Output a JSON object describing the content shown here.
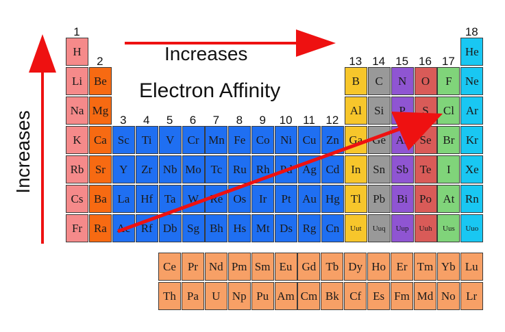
{
  "title": "Electron Affinity",
  "top_arrow_label": "Increases",
  "side_arrow_label": "Increases",
  "colors": {
    "alkali": "#f58a8a",
    "alkaline": "#f76a12",
    "transition": "#1f6ff2",
    "post_transition": "#f7c62b",
    "metalloid": "#999999",
    "nonmetal_pnictogen": "#8f55d2",
    "chalcogen": "#d95b58",
    "halogen": "#80d47a",
    "noble": "#19c7f2",
    "lanthanide": "#f7a066",
    "arrow": "#ee1111"
  },
  "group_numbers": [
    "1",
    "2",
    "3",
    "4",
    "5",
    "6",
    "7",
    "8",
    "9",
    "10",
    "11",
    "12",
    "13",
    "14",
    "15",
    "16",
    "17",
    "18"
  ],
  "elements": [
    {
      "symbol": "H",
      "row": 1,
      "col": 1,
      "cat": "alkali"
    },
    {
      "symbol": "He",
      "row": 1,
      "col": 18,
      "cat": "noble"
    },
    {
      "symbol": "Li",
      "row": 2,
      "col": 1,
      "cat": "alkali"
    },
    {
      "symbol": "Be",
      "row": 2,
      "col": 2,
      "cat": "alkaline"
    },
    {
      "symbol": "B",
      "row": 2,
      "col": 13,
      "cat": "post_transition"
    },
    {
      "symbol": "C",
      "row": 2,
      "col": 14,
      "cat": "metalloid"
    },
    {
      "symbol": "N",
      "row": 2,
      "col": 15,
      "cat": "nonmetal_pnictogen"
    },
    {
      "symbol": "O",
      "row": 2,
      "col": 16,
      "cat": "chalcogen"
    },
    {
      "symbol": "F",
      "row": 2,
      "col": 17,
      "cat": "halogen"
    },
    {
      "symbol": "Ne",
      "row": 2,
      "col": 18,
      "cat": "noble"
    },
    {
      "symbol": "Na",
      "row": 3,
      "col": 1,
      "cat": "alkali"
    },
    {
      "symbol": "Mg",
      "row": 3,
      "col": 2,
      "cat": "alkaline"
    },
    {
      "symbol": "Al",
      "row": 3,
      "col": 13,
      "cat": "post_transition"
    },
    {
      "symbol": "Si",
      "row": 3,
      "col": 14,
      "cat": "metalloid"
    },
    {
      "symbol": "P",
      "row": 3,
      "col": 15,
      "cat": "nonmetal_pnictogen"
    },
    {
      "symbol": "S",
      "row": 3,
      "col": 16,
      "cat": "chalcogen"
    },
    {
      "symbol": "Cl",
      "row": 3,
      "col": 17,
      "cat": "halogen"
    },
    {
      "symbol": "Ar",
      "row": 3,
      "col": 18,
      "cat": "noble"
    },
    {
      "symbol": "K",
      "row": 4,
      "col": 1,
      "cat": "alkali"
    },
    {
      "symbol": "Ca",
      "row": 4,
      "col": 2,
      "cat": "alkaline"
    },
    {
      "symbol": "Sc",
      "row": 4,
      "col": 3,
      "cat": "transition"
    },
    {
      "symbol": "Ti",
      "row": 4,
      "col": 4,
      "cat": "transition"
    },
    {
      "symbol": "V",
      "row": 4,
      "col": 5,
      "cat": "transition"
    },
    {
      "symbol": "Cr",
      "row": 4,
      "col": 6,
      "cat": "transition"
    },
    {
      "symbol": "Mn",
      "row": 4,
      "col": 7,
      "cat": "transition"
    },
    {
      "symbol": "Fe",
      "row": 4,
      "col": 8,
      "cat": "transition"
    },
    {
      "symbol": "Co",
      "row": 4,
      "col": 9,
      "cat": "transition"
    },
    {
      "symbol": "Ni",
      "row": 4,
      "col": 10,
      "cat": "transition"
    },
    {
      "symbol": "Cu",
      "row": 4,
      "col": 11,
      "cat": "transition"
    },
    {
      "symbol": "Zn",
      "row": 4,
      "col": 12,
      "cat": "transition"
    },
    {
      "symbol": "Ga",
      "row": 4,
      "col": 13,
      "cat": "post_transition"
    },
    {
      "symbol": "Ge",
      "row": 4,
      "col": 14,
      "cat": "metalloid"
    },
    {
      "symbol": "As",
      "row": 4,
      "col": 15,
      "cat": "nonmetal_pnictogen"
    },
    {
      "symbol": "Se",
      "row": 4,
      "col": 16,
      "cat": "chalcogen"
    },
    {
      "symbol": "Br",
      "row": 4,
      "col": 17,
      "cat": "halogen"
    },
    {
      "symbol": "Kr",
      "row": 4,
      "col": 18,
      "cat": "noble"
    },
    {
      "symbol": "Rb",
      "row": 5,
      "col": 1,
      "cat": "alkali"
    },
    {
      "symbol": "Sr",
      "row": 5,
      "col": 2,
      "cat": "alkaline"
    },
    {
      "symbol": "Y",
      "row": 5,
      "col": 3,
      "cat": "transition"
    },
    {
      "symbol": "Zr",
      "row": 5,
      "col": 4,
      "cat": "transition"
    },
    {
      "symbol": "Nb",
      "row": 5,
      "col": 5,
      "cat": "transition"
    },
    {
      "symbol": "Mo",
      "row": 5,
      "col": 6,
      "cat": "transition"
    },
    {
      "symbol": "Tc",
      "row": 5,
      "col": 7,
      "cat": "transition"
    },
    {
      "symbol": "Ru",
      "row": 5,
      "col": 8,
      "cat": "transition"
    },
    {
      "symbol": "Rh",
      "row": 5,
      "col": 9,
      "cat": "transition"
    },
    {
      "symbol": "Pd",
      "row": 5,
      "col": 10,
      "cat": "transition"
    },
    {
      "symbol": "Ag",
      "row": 5,
      "col": 11,
      "cat": "transition"
    },
    {
      "symbol": "Cd",
      "row": 5,
      "col": 12,
      "cat": "transition"
    },
    {
      "symbol": "In",
      "row": 5,
      "col": 13,
      "cat": "post_transition"
    },
    {
      "symbol": "Sn",
      "row": 5,
      "col": 14,
      "cat": "metalloid"
    },
    {
      "symbol": "Sb",
      "row": 5,
      "col": 15,
      "cat": "nonmetal_pnictogen"
    },
    {
      "symbol": "Te",
      "row": 5,
      "col": 16,
      "cat": "chalcogen"
    },
    {
      "symbol": "I",
      "row": 5,
      "col": 17,
      "cat": "halogen"
    },
    {
      "symbol": "Xe",
      "row": 5,
      "col": 18,
      "cat": "noble"
    },
    {
      "symbol": "Cs",
      "row": 6,
      "col": 1,
      "cat": "alkali"
    },
    {
      "symbol": "Ba",
      "row": 6,
      "col": 2,
      "cat": "alkaline"
    },
    {
      "symbol": "La",
      "row": 6,
      "col": 3,
      "cat": "transition"
    },
    {
      "symbol": "Hf",
      "row": 6,
      "col": 4,
      "cat": "transition"
    },
    {
      "symbol": "Ta",
      "row": 6,
      "col": 5,
      "cat": "transition"
    },
    {
      "symbol": "W",
      "row": 6,
      "col": 6,
      "cat": "transition"
    },
    {
      "symbol": "Re",
      "row": 6,
      "col": 7,
      "cat": "transition"
    },
    {
      "symbol": "Os",
      "row": 6,
      "col": 8,
      "cat": "transition"
    },
    {
      "symbol": "Ir",
      "row": 6,
      "col": 9,
      "cat": "transition"
    },
    {
      "symbol": "Pt",
      "row": 6,
      "col": 10,
      "cat": "transition"
    },
    {
      "symbol": "Au",
      "row": 6,
      "col": 11,
      "cat": "transition"
    },
    {
      "symbol": "Hg",
      "row": 6,
      "col": 12,
      "cat": "transition"
    },
    {
      "symbol": "Tl",
      "row": 6,
      "col": 13,
      "cat": "post_transition"
    },
    {
      "symbol": "Pb",
      "row": 6,
      "col": 14,
      "cat": "metalloid"
    },
    {
      "symbol": "Bi",
      "row": 6,
      "col": 15,
      "cat": "nonmetal_pnictogen"
    },
    {
      "symbol": "Po",
      "row": 6,
      "col": 16,
      "cat": "chalcogen"
    },
    {
      "symbol": "At",
      "row": 6,
      "col": 17,
      "cat": "halogen"
    },
    {
      "symbol": "Rn",
      "row": 6,
      "col": 18,
      "cat": "noble"
    },
    {
      "symbol": "Fr",
      "row": 7,
      "col": 1,
      "cat": "alkali"
    },
    {
      "symbol": "Ra",
      "row": 7,
      "col": 2,
      "cat": "alkaline"
    },
    {
      "symbol": "Ac",
      "row": 7,
      "col": 3,
      "cat": "transition"
    },
    {
      "symbol": "Rf",
      "row": 7,
      "col": 4,
      "cat": "transition"
    },
    {
      "symbol": "Db",
      "row": 7,
      "col": 5,
      "cat": "transition"
    },
    {
      "symbol": "Sg",
      "row": 7,
      "col": 6,
      "cat": "transition"
    },
    {
      "symbol": "Bh",
      "row": 7,
      "col": 7,
      "cat": "transition"
    },
    {
      "symbol": "Hs",
      "row": 7,
      "col": 8,
      "cat": "transition"
    },
    {
      "symbol": "Mt",
      "row": 7,
      "col": 9,
      "cat": "transition"
    },
    {
      "symbol": "Ds",
      "row": 7,
      "col": 10,
      "cat": "transition"
    },
    {
      "symbol": "Rg",
      "row": 7,
      "col": 11,
      "cat": "transition"
    },
    {
      "symbol": "Cn",
      "row": 7,
      "col": 12,
      "cat": "transition"
    },
    {
      "symbol": "Uut",
      "row": 7,
      "col": 13,
      "cat": "post_transition"
    },
    {
      "symbol": "Uuq",
      "row": 7,
      "col": 14,
      "cat": "metalloid"
    },
    {
      "symbol": "Uup",
      "row": 7,
      "col": 15,
      "cat": "nonmetal_pnictogen"
    },
    {
      "symbol": "Uuh",
      "row": 7,
      "col": 16,
      "cat": "chalcogen"
    },
    {
      "symbol": "Uus",
      "row": 7,
      "col": 17,
      "cat": "halogen"
    },
    {
      "symbol": "Uuo",
      "row": 7,
      "col": 18,
      "cat": "noble"
    }
  ],
  "lanthanides": [
    "Ce",
    "Pr",
    "Nd",
    "Pm",
    "Sm",
    "Eu",
    "Gd",
    "Tb",
    "Dy",
    "Ho",
    "Er",
    "Tm",
    "Yb",
    "Lu"
  ],
  "actinides": [
    "Th",
    "Pa",
    "U",
    "Np",
    "Pu",
    "Am",
    "Cm",
    "Bk",
    "Cf",
    "Es",
    "Fm",
    "Md",
    "No",
    "Lr"
  ]
}
